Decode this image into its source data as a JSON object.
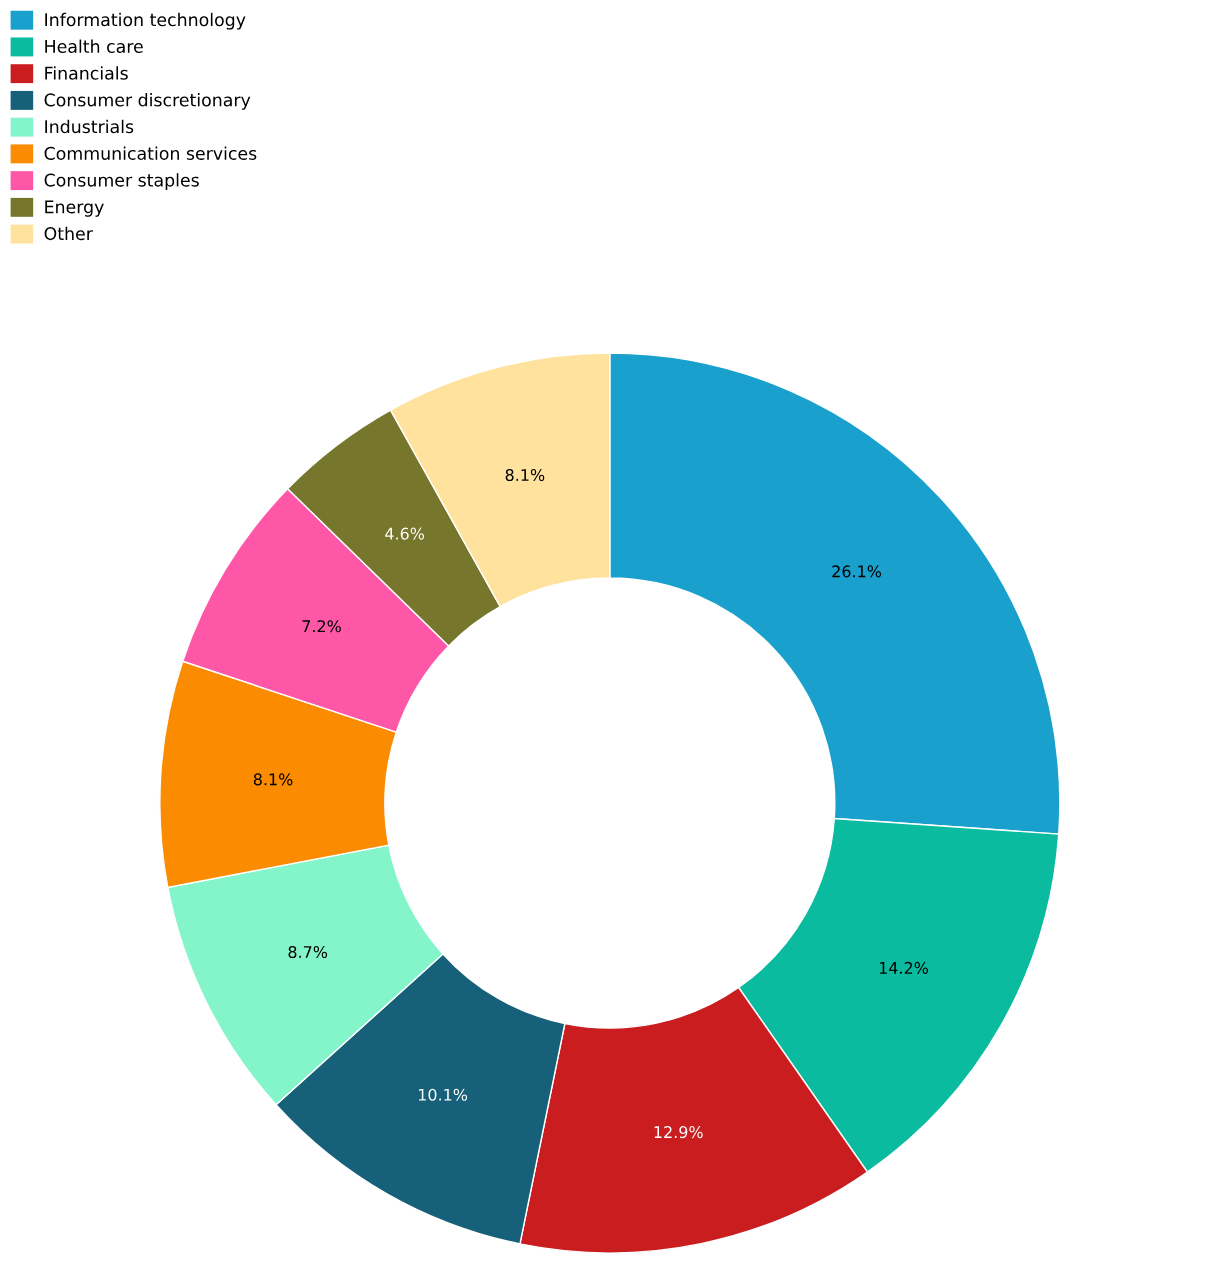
{
  "chart_data": {
    "type": "donut",
    "categories": [
      "Information technology",
      "Health care",
      "Financials",
      "Consumer discretionary",
      "Industrials",
      "Communication services",
      "Consumer staples",
      "Energy",
      "Other"
    ],
    "values": [
      26.1,
      14.2,
      12.9,
      10.1,
      8.7,
      8.1,
      7.2,
      4.6,
      8.1
    ],
    "value_labels": [
      "26.1%",
      "14.2%",
      "12.9%",
      "10.1%",
      "8.7%",
      "8.1%",
      "7.2%",
      "4.6%",
      "8.1%"
    ],
    "colors": [
      "#1aa0cc",
      "#0bbba0",
      "#c91d1f",
      "#17607a",
      "#84f5cb",
      "#fb8b00",
      "#ff57a8",
      "#76762c",
      "#ffe29e"
    ],
    "legend": "top left"
  }
}
